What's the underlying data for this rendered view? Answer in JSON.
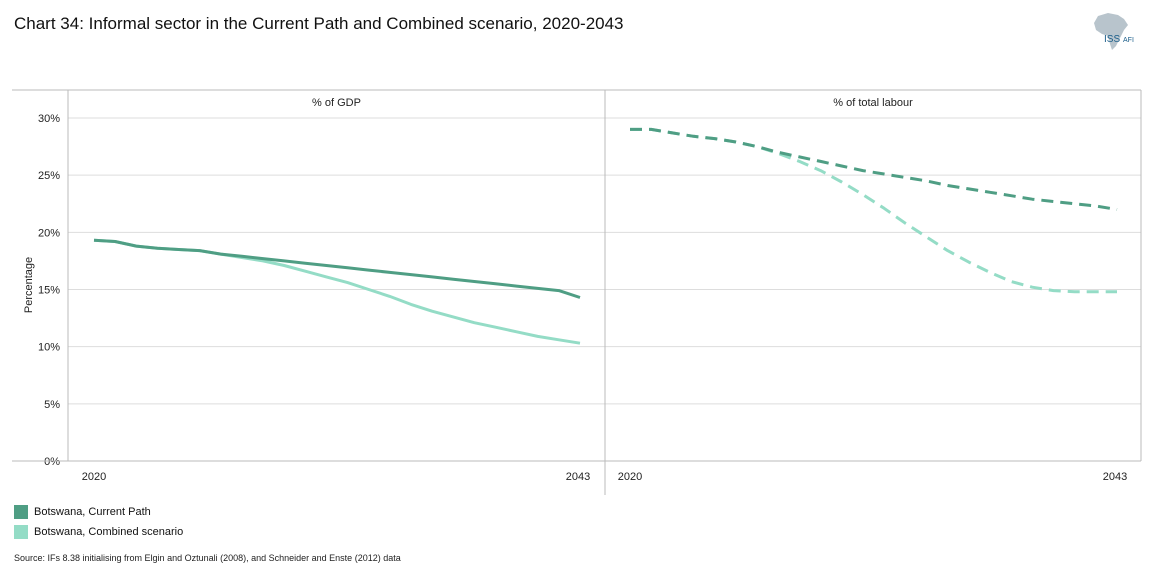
{
  "title": "Chart 34: Informal sector in the Current Path and Combined scenario, 2020-2043",
  "logo": {
    "main": "ISS",
    "sub": "AFI"
  },
  "source": "Source: IFs 8.38 initialising from Elgin and Oztunali (2008), and Schneider and Enste (2012) data",
  "colors": {
    "current": "#4f9e84",
    "combined": "#94dcc6",
    "grid": "#dddddd",
    "axis": "#bbbbbb"
  },
  "legend": [
    {
      "label": "Botswana, Current Path",
      "color": "#4f9e84"
    },
    {
      "label": "Botswana, Combined scenario",
      "color": "#94dcc6"
    }
  ],
  "chart_data": [
    {
      "type": "line",
      "title": "% of GDP",
      "ylabel": "Percentage",
      "ylim": [
        0,
        30
      ],
      "yticks": [
        "0%",
        "5%",
        "10%",
        "15%",
        "20%",
        "25%",
        "30%"
      ],
      "xlim": [
        2020,
        2043
      ],
      "xticks": [
        "2020",
        "2043"
      ],
      "line_style": "solid",
      "series": [
        {
          "name": "Botswana, Current Path",
          "x": [
            2020,
            2021,
            2022,
            2023,
            2024,
            2025,
            2026,
            2027,
            2028,
            2029,
            2030,
            2031,
            2032,
            2033,
            2034,
            2035,
            2036,
            2037,
            2038,
            2039,
            2040,
            2041,
            2042,
            2043
          ],
          "values": [
            19.3,
            19.2,
            18.8,
            18.6,
            18.5,
            18.4,
            18.1,
            17.9,
            17.7,
            17.5,
            17.3,
            17.1,
            16.9,
            16.7,
            16.5,
            16.3,
            16.1,
            15.9,
            15.7,
            15.5,
            15.3,
            15.1,
            14.9,
            14.3
          ]
        },
        {
          "name": "Botswana, Combined scenario",
          "x": [
            2020,
            2021,
            2022,
            2023,
            2024,
            2025,
            2026,
            2027,
            2028,
            2029,
            2030,
            2031,
            2032,
            2033,
            2034,
            2035,
            2036,
            2037,
            2038,
            2039,
            2040,
            2041,
            2042,
            2043
          ],
          "values": [
            19.3,
            19.2,
            18.8,
            18.6,
            18.5,
            18.4,
            18.1,
            17.8,
            17.5,
            17.1,
            16.6,
            16.1,
            15.6,
            15.0,
            14.4,
            13.7,
            13.1,
            12.6,
            12.1,
            11.7,
            11.3,
            10.9,
            10.6,
            10.3
          ]
        }
      ]
    },
    {
      "type": "line",
      "title": "% of total labour",
      "ylim": [
        0,
        30
      ],
      "xlim": [
        2020,
        2043
      ],
      "xticks": [
        "2020",
        "2043"
      ],
      "line_style": "dashed",
      "series": [
        {
          "name": "Botswana, Current Path",
          "x": [
            2020,
            2021,
            2022,
            2023,
            2024,
            2025,
            2026,
            2027,
            2028,
            2029,
            2030,
            2031,
            2032,
            2033,
            2034,
            2035,
            2036,
            2037,
            2038,
            2039,
            2040,
            2041,
            2042,
            2043
          ],
          "values": [
            29.0,
            29.0,
            28.7,
            28.4,
            28.2,
            27.9,
            27.5,
            27.0,
            26.6,
            26.2,
            25.8,
            25.4,
            25.1,
            24.8,
            24.5,
            24.1,
            23.8,
            23.5,
            23.2,
            22.9,
            22.7,
            22.5,
            22.3,
            22.0
          ]
        },
        {
          "name": "Botswana, Combined scenario",
          "x": [
            2020,
            2021,
            2022,
            2023,
            2024,
            2025,
            2026,
            2027,
            2028,
            2029,
            2030,
            2031,
            2032,
            2033,
            2034,
            2035,
            2036,
            2037,
            2038,
            2039,
            2040,
            2041,
            2042,
            2043
          ],
          "values": [
            29.0,
            29.0,
            28.7,
            28.4,
            28.2,
            27.9,
            27.5,
            26.9,
            26.2,
            25.4,
            24.4,
            23.3,
            22.1,
            20.8,
            19.6,
            18.4,
            17.4,
            16.5,
            15.7,
            15.2,
            14.9,
            14.8,
            14.8,
            14.8
          ]
        }
      ]
    }
  ]
}
